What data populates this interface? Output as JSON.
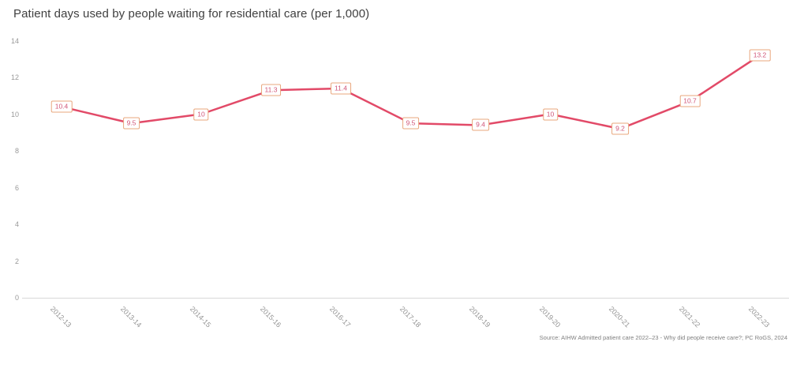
{
  "page": {
    "title": "Patient days used by people waiting for residential care (per 1,000)",
    "source": "Source: AIHW Admitted patient care 2022–23 - Why did people receive care?; PC RoGS, 2024"
  },
  "chart_data": {
    "type": "line",
    "title": "Patient days used by people waiting for residential care (per 1,000)",
    "categories": [
      "2012-13",
      "2013-14",
      "2014-15",
      "2015-16",
      "2016-17",
      "2017-18",
      "2018-19",
      "2019-20",
      "2020-21",
      "2021-22",
      "2022-23"
    ],
    "series": [
      {
        "name": "Patient days used by people waiting for residential care (per 1,000)",
        "values": [
          10.4,
          9.5,
          10,
          11.3,
          11.4,
          9.5,
          9.4,
          10,
          9.2,
          10.7,
          13.2
        ]
      }
    ],
    "data_labels": [
      "10.4",
      "9.5",
      "10",
      "11.3",
      "11.4",
      "9.5",
      "9.4",
      "10",
      "9.2",
      "10.7",
      "13.2"
    ],
    "xlabel": "",
    "ylabel": "",
    "ylim": [
      0,
      14
    ],
    "y_ticks": [
      0,
      2,
      4,
      6,
      8,
      10,
      12,
      14
    ],
    "grid": false,
    "legend": "none",
    "x_tick_rotation_deg": 45,
    "colors": {
      "line": "#e24a68",
      "label_text": "#d05578",
      "label_border": "#e9a77e",
      "axis_text": "#999999",
      "axis_line": "#d9d9d9",
      "title_text": "#404040",
      "source_text": "#7f7f7f"
    },
    "source": "Source: AIHW Admitted patient care 2022–23 - Why did people receive care?; PC RoGS, 2024"
  }
}
